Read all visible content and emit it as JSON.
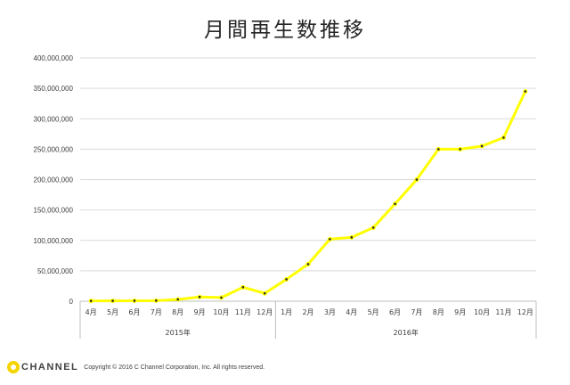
{
  "chart_data": {
    "type": "line",
    "title": "月間再生数推移",
    "xlabel": "",
    "ylabel": "",
    "ylim": [
      0,
      400000000
    ],
    "yticks": [
      0,
      50000000,
      100000000,
      150000000,
      200000000,
      250000000,
      300000000,
      350000000,
      400000000
    ],
    "ytick_labels": [
      "0",
      "50,000,000",
      "100,000,000",
      "150,000,000",
      "200,000,000",
      "250,000,000",
      "300,000,000",
      "350,000,000",
      "400,000,000"
    ],
    "grid": true,
    "legend": "none",
    "categories": [
      "4月",
      "5月",
      "6月",
      "7月",
      "8月",
      "9月",
      "10月",
      "11月",
      "12月",
      "1月",
      "2月",
      "3月",
      "4月",
      "5月",
      "6月",
      "7月",
      "8月",
      "9月",
      "10月",
      "11月",
      "12月"
    ],
    "groups": [
      {
        "label": "2015年",
        "count": 9
      },
      {
        "label": "2016年",
        "count": 12
      }
    ],
    "series": [
      {
        "values": [
          500000,
          600000,
          800000,
          1000000,
          3000000,
          7000000,
          6000000,
          23000000,
          13000000,
          36000000,
          61000000,
          102000000,
          105000000,
          121000000,
          160000000,
          200000000,
          250000000,
          250000000,
          255000000,
          269000000,
          345000000
        ],
        "color": "#ffff00",
        "marker_color": "#262626"
      }
    ]
  },
  "footer": {
    "logo_text": "CHANNEL",
    "copyright": "Copyright © 2016 C Channel Corporation, Inc. All rights reserved."
  }
}
